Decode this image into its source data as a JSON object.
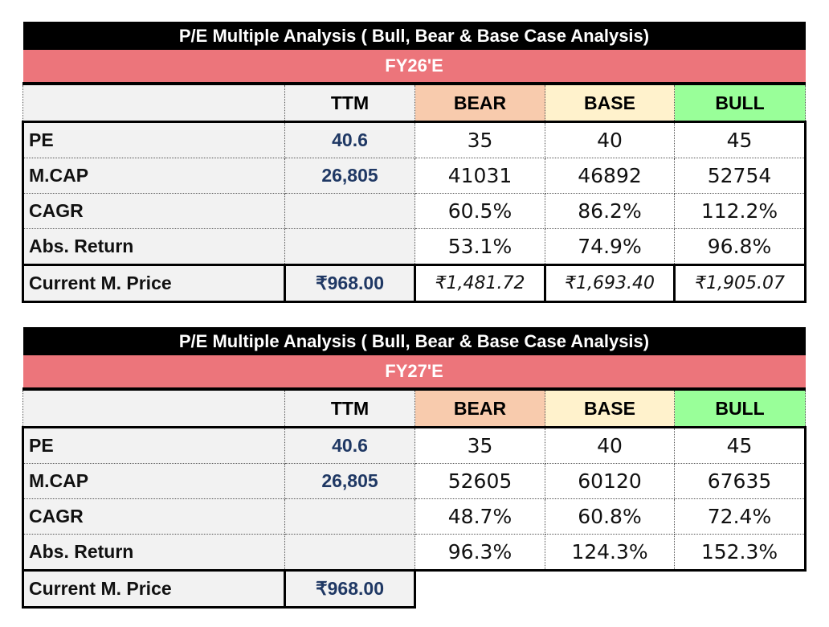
{
  "colors": {
    "title_bg": "#000000",
    "fy_bg": "#ec757b",
    "bear": "#f8cbad",
    "base": "#fff2cc",
    "bull": "#99ff99",
    "ttm_text": "#1f3864"
  },
  "tables": [
    {
      "title": "P/E Multiple Analysis ( Bull, Bear &  Base Case Analysis)",
      "period": "FY26'E",
      "headers": [
        "",
        "TTM",
        "BEAR",
        "BASE",
        "BULL"
      ],
      "rows": [
        {
          "label": "PE",
          "ttm": "40.6",
          "values": [
            "35",
            "40",
            "45"
          ]
        },
        {
          "label": "M.CAP",
          "ttm": "26,805",
          "values": [
            "41031",
            "46892",
            "52754"
          ]
        },
        {
          "label": "CAGR",
          "ttm": "",
          "values": [
            "60.5%",
            "86.2%",
            "112.2%"
          ]
        },
        {
          "label": "Abs. Return",
          "ttm": "",
          "values": [
            "53.1%",
            "74.9%",
            "96.8%"
          ]
        },
        {
          "label": "Current M. Price",
          "ttm": "₹968.00",
          "values": [
            "₹1,481.72",
            "₹1,693.40",
            "₹1,905.07"
          ]
        }
      ]
    },
    {
      "title": "P/E Multiple Analysis ( Bull, Bear &  Base Case Analysis)",
      "period": "FY27'E",
      "headers": [
        "",
        "TTM",
        "BEAR",
        "BASE",
        "BULL"
      ],
      "rows": [
        {
          "label": "PE",
          "ttm": "40.6",
          "values": [
            "35",
            "40",
            "45"
          ]
        },
        {
          "label": "M.CAP",
          "ttm": "26,805",
          "values": [
            "52605",
            "60120",
            "67635"
          ]
        },
        {
          "label": "CAGR",
          "ttm": "",
          "values": [
            "48.7%",
            "60.8%",
            "72.4%"
          ]
        },
        {
          "label": "Abs. Return",
          "ttm": "",
          "values": [
            "96.3%",
            "124.3%",
            "152.3%"
          ]
        },
        {
          "label": "Current M. Price",
          "ttm": "₹968.00",
          "values": []
        }
      ]
    }
  ]
}
